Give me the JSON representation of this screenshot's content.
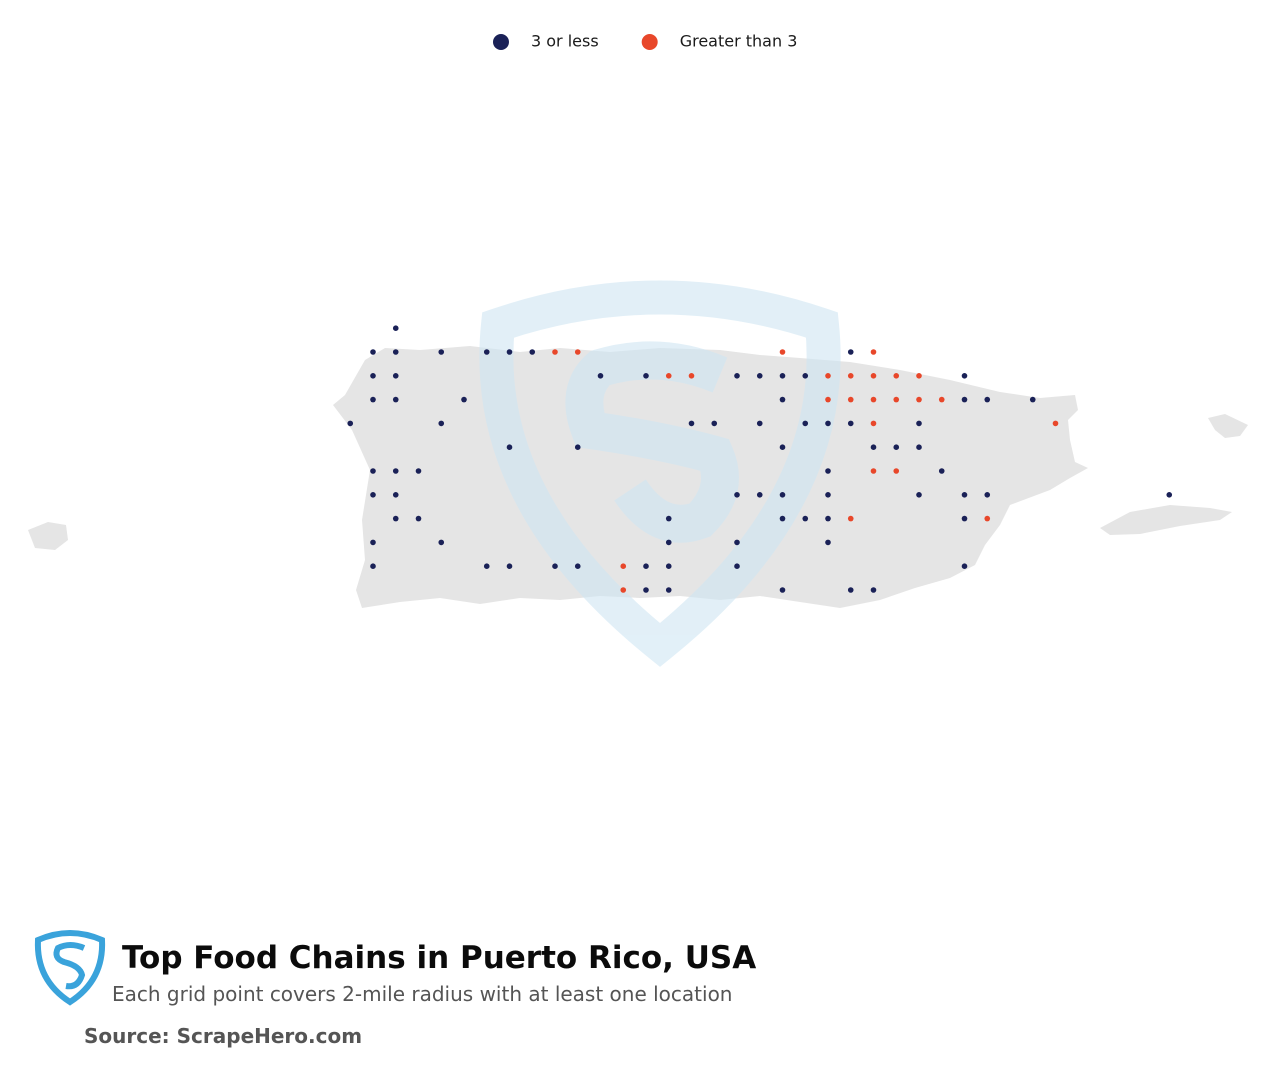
{
  "map": {
    "title": "Top Food Chains in Puerto Rico, USA",
    "subtitle": "Each grid point covers 2-mile radius with at least one location",
    "source": "Source: ScrapeHero.com",
    "series": [
      {
        "name": "3 or less",
        "color": "#1a2157",
        "lon": [
          -67.13,
          -67.18,
          -67.13,
          -67.03,
          -66.93,
          -66.88,
          -66.83,
          -66.13,
          -67.18,
          -67.13,
          -66.68,
          -66.58,
          -66.38,
          -66.33,
          -66.28,
          -66.23,
          -65.88,
          -67.18,
          -67.13,
          -66.98,
          -66.28,
          -65.88,
          -65.83,
          -65.73,
          -67.23,
          -67.03,
          -66.48,
          -66.43,
          -66.33,
          -66.23,
          -66.18,
          -66.13,
          -65.98,
          -66.88,
          -66.73,
          -66.28,
          -66.08,
          -66.03,
          -65.98,
          -67.18,
          -67.13,
          -67.08,
          -66.18,
          -65.93,
          -67.18,
          -67.13,
          -66.38,
          -66.33,
          -66.28,
          -66.18,
          -65.98,
          -65.88,
          -65.83,
          -65.43,
          -67.13,
          -67.08,
          -66.53,
          -66.28,
          -66.23,
          -66.18,
          -65.88,
          -67.18,
          -67.03,
          -66.53,
          -66.38,
          -66.18,
          -67.18,
          -66.93,
          -66.88,
          -66.78,
          -66.73,
          -66.58,
          -66.53,
          -66.38,
          -65.88,
          -66.58,
          -66.53,
          -66.28,
          -66.13,
          -66.08
        ],
        "lat": [
          18.55,
          18.5,
          18.5,
          18.5,
          18.5,
          18.5,
          18.5,
          18.5,
          18.45,
          18.45,
          18.45,
          18.45,
          18.45,
          18.45,
          18.45,
          18.45,
          18.45,
          18.4,
          18.4,
          18.4,
          18.4,
          18.4,
          18.4,
          18.4,
          18.35,
          18.35,
          18.35,
          18.35,
          18.35,
          18.35,
          18.35,
          18.35,
          18.35,
          18.3,
          18.3,
          18.3,
          18.3,
          18.3,
          18.3,
          18.25,
          18.25,
          18.25,
          18.25,
          18.25,
          18.2,
          18.2,
          18.2,
          18.2,
          18.2,
          18.2,
          18.2,
          18.2,
          18.2,
          18.2,
          18.15,
          18.15,
          18.15,
          18.15,
          18.15,
          18.15,
          18.15,
          18.1,
          18.1,
          18.1,
          18.1,
          18.1,
          18.05,
          18.05,
          18.05,
          18.05,
          18.05,
          18.05,
          18.05,
          18.05,
          18.05,
          18.0,
          18.0,
          18.0,
          18.0,
          18.0
        ]
      },
      {
        "name": "Greater than 3",
        "color": "#e8472a",
        "lon": [
          -66.78,
          -66.73,
          -66.28,
          -66.08,
          -66.53,
          -66.48,
          -66.18,
          -66.13,
          -66.08,
          -66.03,
          -65.98,
          -66.18,
          -66.13,
          -66.08,
          -66.03,
          -65.98,
          -65.93,
          -66.08,
          -65.68,
          -66.08,
          -66.03,
          -66.13,
          -65.83,
          -66.63,
          -66.63
        ],
        "lat": [
          18.5,
          18.5,
          18.5,
          18.5,
          18.45,
          18.45,
          18.45,
          18.45,
          18.45,
          18.45,
          18.45,
          18.4,
          18.4,
          18.4,
          18.4,
          18.4,
          18.4,
          18.35,
          18.35,
          18.25,
          18.25,
          18.15,
          18.15,
          18.05,
          18.0
        ]
      }
    ]
  }
}
